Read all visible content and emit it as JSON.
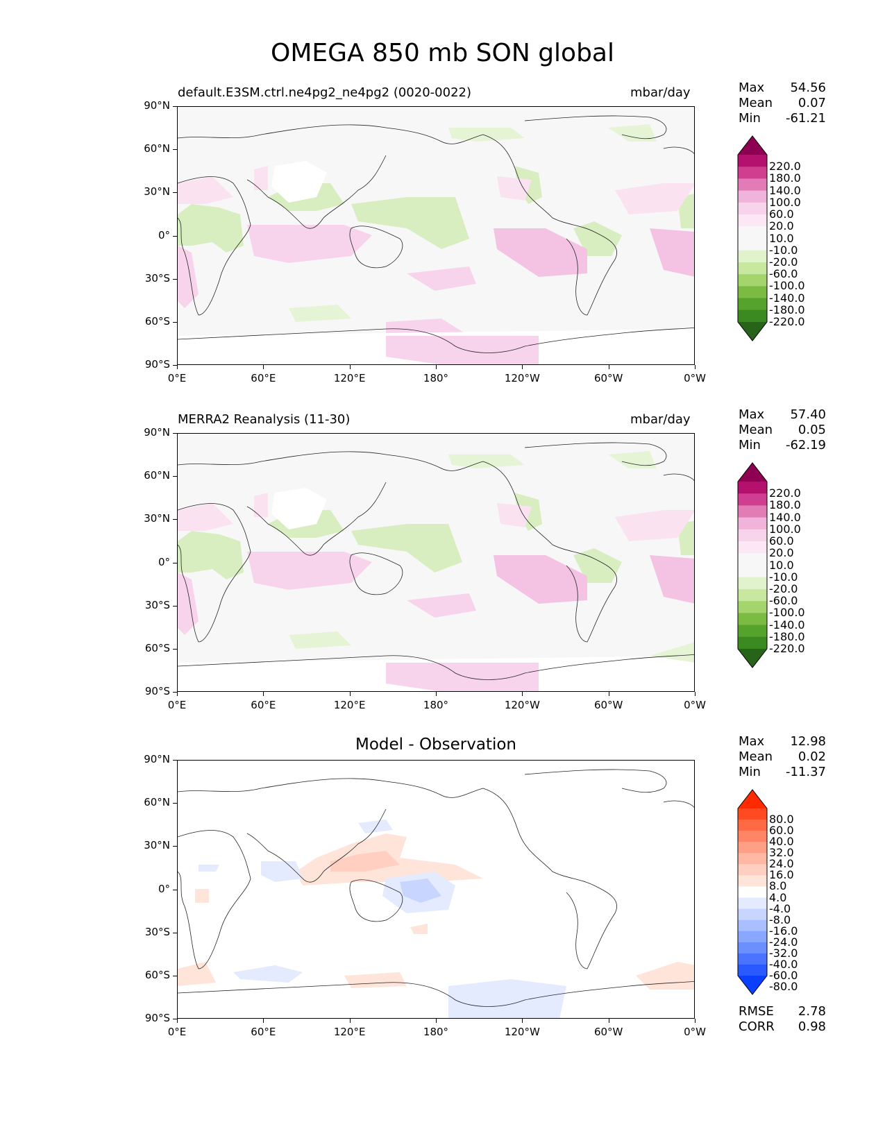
{
  "title": "OMEGA 850 mb SON global",
  "panels": [
    {
      "left_title": "default.E3SM.ctrl.ne4pg2_ne4pg2 (0020-0022)",
      "center_title": "",
      "units": "mbar/day",
      "stats": {
        "max_label": "Max",
        "max": "54.56",
        "mean_label": "Mean",
        "mean": "0.07",
        "min_label": "Min",
        "min": "-61.21"
      },
      "colorbar": {
        "labels": [
          "220.0",
          "180.0",
          "140.0",
          "100.0",
          "60.0",
          "20.0",
          "10.0",
          "-10.0",
          "-20.0",
          "-60.0",
          "-100.0",
          "-140.0",
          "-180.0",
          "-220.0"
        ],
        "colors": [
          "#8e0152",
          "#b4106e",
          "#cf3e8f",
          "#e27cb6",
          "#f0b4da",
          "#f8d4ec",
          "#fbe8f4",
          "#f7f7f7",
          "#f7f7f7",
          "#e1f3cc",
          "#c8e89f",
          "#a4d46c",
          "#7cbb43",
          "#55a22c",
          "#3a8a21",
          "#276419"
        ]
      }
    },
    {
      "left_title": "MERRA2 Reanalysis (11-30)",
      "center_title": "",
      "units": "mbar/day",
      "stats": {
        "max_label": "Max",
        "max": "57.40",
        "mean_label": "Mean",
        "mean": "0.05",
        "min_label": "Min",
        "min": "-62.19"
      },
      "colorbar": {
        "labels": [
          "220.0",
          "180.0",
          "140.0",
          "100.0",
          "60.0",
          "20.0",
          "10.0",
          "-10.0",
          "-20.0",
          "-60.0",
          "-100.0",
          "-140.0",
          "-180.0",
          "-220.0"
        ],
        "colors": [
          "#8e0152",
          "#b4106e",
          "#cf3e8f",
          "#e27cb6",
          "#f0b4da",
          "#f8d4ec",
          "#fbe8f4",
          "#f7f7f7",
          "#f7f7f7",
          "#e1f3cc",
          "#c8e89f",
          "#a4d46c",
          "#7cbb43",
          "#55a22c",
          "#3a8a21",
          "#276419"
        ]
      }
    },
    {
      "left_title": "",
      "center_title": "Model - Observation",
      "units": "",
      "stats": {
        "max_label": "Max",
        "max": "12.98",
        "mean_label": "Mean",
        "mean": "0.02",
        "min_label": "Min",
        "min": "-11.37"
      },
      "extra_stats": {
        "rmse_label": "RMSE",
        "rmse": "2.78",
        "corr_label": "CORR",
        "corr": "0.98"
      },
      "colorbar": {
        "labels": [
          "80.0",
          "60.0",
          "40.0",
          "32.0",
          "24.0",
          "16.0",
          "8.0",
          "4.0",
          "-4.0",
          "-8.0",
          "-16.0",
          "-24.0",
          "-32.0",
          "-40.0",
          "-60.0",
          "-80.0"
        ],
        "colors": [
          "#ff2a00",
          "#ff4a22",
          "#ff6a45",
          "#ff8566",
          "#ff9f85",
          "#ffb8a3",
          "#ffd0c2",
          "#ffe4da",
          "#ffffff",
          "#e4ebff",
          "#c8d6ff",
          "#a9bfff",
          "#8aa7ff",
          "#6b8fff",
          "#4a74ff",
          "#2a5aff",
          "#0a3fff"
        ]
      }
    }
  ],
  "lat_labels": [
    "90°N",
    "60°N",
    "30°N",
    "0°",
    "30°S",
    "60°S",
    "90°S"
  ],
  "lon_labels": [
    "0°E",
    "60°E",
    "120°E",
    "180°",
    "120°W",
    "60°W",
    "0°W"
  ]
}
